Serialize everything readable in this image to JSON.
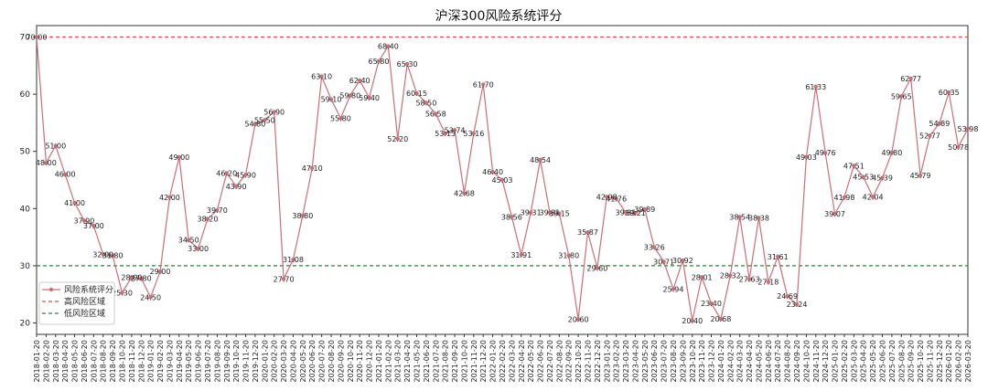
{
  "chart_data": {
    "type": "line",
    "title": "沪深300风险系统评分",
    "ylim": [
      18,
      72
    ],
    "yticks": [
      20,
      30,
      40,
      50,
      60,
      70
    ],
    "grid": false,
    "legend_placement": "lower-left",
    "series": [
      {
        "name": "风险系统评分",
        "color": "#c96f7a",
        "x": [
          "2018-01-20",
          "2018-02-20",
          "2018-03-20",
          "2018-04-20",
          "2018-05-20",
          "2018-06-20",
          "2018-07-20",
          "2018-08-20",
          "2018-09-20",
          "2018-10-20",
          "2018-11-20",
          "2018-12-20",
          "2019-01-20",
          "2019-02-20",
          "2019-03-20",
          "2019-04-20",
          "2019-05-20",
          "2019-06-20",
          "2019-07-20",
          "2019-08-20",
          "2019-09-20",
          "2019-10-20",
          "2019-11-20",
          "2019-12-20",
          "2020-01-20",
          "2020-02-20",
          "2020-03-20",
          "2020-04-20",
          "2020-05-20",
          "2020-06-20",
          "2020-07-20",
          "2020-08-20",
          "2020-09-20",
          "2020-10-20",
          "2020-11-20",
          "2020-12-20",
          "2021-01-20",
          "2021-02-20",
          "2021-03-20",
          "2021-04-20",
          "2021-05-20",
          "2021-06-20",
          "2021-07-20",
          "2021-08-20",
          "2021-09-20",
          "2021-10-20",
          "2021-11-20",
          "2021-12-20",
          "2022-01-20",
          "2022-02-20",
          "2022-03-20",
          "2022-04-20",
          "2022-05-20",
          "2022-06-20",
          "2022-07-20",
          "2022-08-20",
          "2022-09-20",
          "2022-10-20",
          "2022-11-20",
          "2022-12-20",
          "2023-01-20",
          "2023-02-20",
          "2023-03-20",
          "2023-04-20",
          "2023-05-20",
          "2023-06-20",
          "2023-07-20",
          "2023-08-20",
          "2023-09-20",
          "2023-10-20",
          "2023-11-20",
          "2023-12-20",
          "2024-01-20",
          "2024-02-20",
          "2024-03-20",
          "2024-04-20",
          "2024-05-20",
          "2024-06-20",
          "2024-07-20",
          "2024-08-20",
          "2024-09-20",
          "2024-10-20",
          "2024-11-20",
          "2024-12-20",
          "2025-01-20",
          "2025-02-20",
          "2025-03-20",
          "2025-04-20",
          "2025-05-20",
          "2025-06-20",
          "2025-07-20",
          "2025-08-20",
          "2025-09-20",
          "2025-10-20",
          "2025-11-20",
          "2025-12-20",
          "2026-01-20",
          "2026-02-20",
          "2026-03-20"
        ],
        "values": [
          70.0,
          48.0,
          51.0,
          46.0,
          41.0,
          37.9,
          37.0,
          32.0,
          31.8,
          25.3,
          28.0,
          27.8,
          24.5,
          29.0,
          42.0,
          49.0,
          34.5,
          33.0,
          38.2,
          39.7,
          46.2,
          43.9,
          45.9,
          54.8,
          55.5,
          56.9,
          27.7,
          31.08,
          38.8,
          47.1,
          63.1,
          59.1,
          55.8,
          59.8,
          62.4,
          59.4,
          65.8,
          68.4,
          52.2,
          65.3,
          60.15,
          58.5,
          56.58,
          53.13,
          53.74,
          42.68,
          53.16,
          61.7,
          46.4,
          45.03,
          38.56,
          31.91,
          39.31,
          48.54,
          39.31,
          39.15,
          31.8,
          20.6,
          35.87,
          29.6,
          42.08,
          41.76,
          39.31,
          39.21,
          39.89,
          33.26,
          30.71,
          25.94,
          30.92,
          20.4,
          28.01,
          23.4,
          20.68,
          28.32,
          38.54,
          27.63,
          38.38,
          27.18,
          31.61,
          24.69,
          23.24,
          49.03,
          61.33,
          49.76,
          39.07,
          41.98,
          47.51,
          45.53,
          42.04,
          45.39,
          49.8,
          59.65,
          62.77,
          45.79,
          52.77,
          54.89,
          60.35,
          50.78,
          53.98
        ]
      },
      {
        "name": "高风险区域",
        "color": "#e04a4a",
        "values": [
          70
        ],
        "style": "dashed"
      },
      {
        "name": "低风险区域",
        "color": "#2a8a2a",
        "values": [
          30
        ],
        "style": "dashed"
      }
    ],
    "data_labels": [
      "70.00",
      "48.00",
      "51.00",
      "46.00",
      "41.00",
      "37.90",
      "37.00",
      "32.00",
      "31.80",
      "25.30",
      "28.00",
      "27.80",
      "24.50",
      "29.00",
      "42.00",
      "49.00",
      "34.50",
      "33.00",
      "38.20",
      "39.70",
      "46.20",
      "43.90",
      "45.90",
      "54.80",
      "55.50",
      "56.90",
      "27.70",
      "31.08",
      "38.80",
      "47.10",
      "63.10",
      "59.10",
      "55.80",
      "59.80",
      "62.40",
      "59.40",
      "65.80",
      "68.40",
      "52.20",
      "65.30",
      "60.15",
      "58.50",
      "56.58",
      "53.13",
      "53.74",
      "42.68",
      "53.16",
      "61.70",
      "46.40",
      "45.03",
      "38.56",
      "31.91",
      "39.31",
      "48.54",
      "39.31",
      "39.15",
      "31.80",
      "20.60",
      "35.87",
      "29.60",
      "42.08",
      "41.76",
      "39.31",
      "39.21",
      "39.89",
      "33.26",
      "30.71",
      "25.94",
      "30.92",
      "20.40",
      "28.01",
      "23.40",
      "20.68",
      "28.32",
      "38.54",
      "27.63",
      "38.38",
      "27.18",
      "31.61",
      "24.69",
      "23.24",
      "49.03",
      "61.33",
      "49.76",
      "39.07",
      "41.98",
      "47.51",
      "45.53",
      "42.04",
      "45.39",
      "49.80",
      "59.65",
      "62.77",
      "45.79",
      "52.77",
      "54.89",
      "60.35",
      "50.78",
      "53.98"
    ]
  }
}
